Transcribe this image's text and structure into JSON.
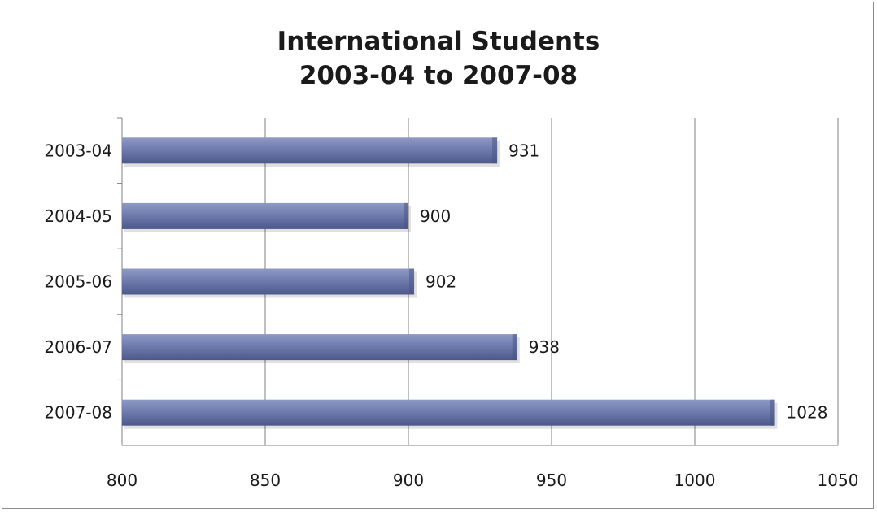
{
  "chart_data": {
    "type": "bar",
    "orientation": "horizontal",
    "title": [
      "International Students",
      "2003-04 to 2007-08"
    ],
    "xlabel": "",
    "ylabel": "",
    "categories": [
      "2003-04",
      "2004-05",
      "2005-06",
      "2006-07",
      "2007-08"
    ],
    "values": [
      931,
      900,
      902,
      938,
      1028
    ],
    "xlim": [
      800,
      1050
    ],
    "xticks": [
      800,
      850,
      900,
      950,
      1000,
      1050
    ],
    "xtick_labels": [
      "800",
      "850",
      "900",
      "950",
      "1000",
      "1050"
    ],
    "data_labels": [
      "931",
      "900",
      "902",
      "938",
      "1028"
    ],
    "grid": "vertical",
    "legend": "none",
    "colors": {
      "bar": "#6b78a8",
      "bar_light": "#9aa5cc",
      "bar_dark": "#4a5585",
      "grid": "#808080"
    }
  }
}
